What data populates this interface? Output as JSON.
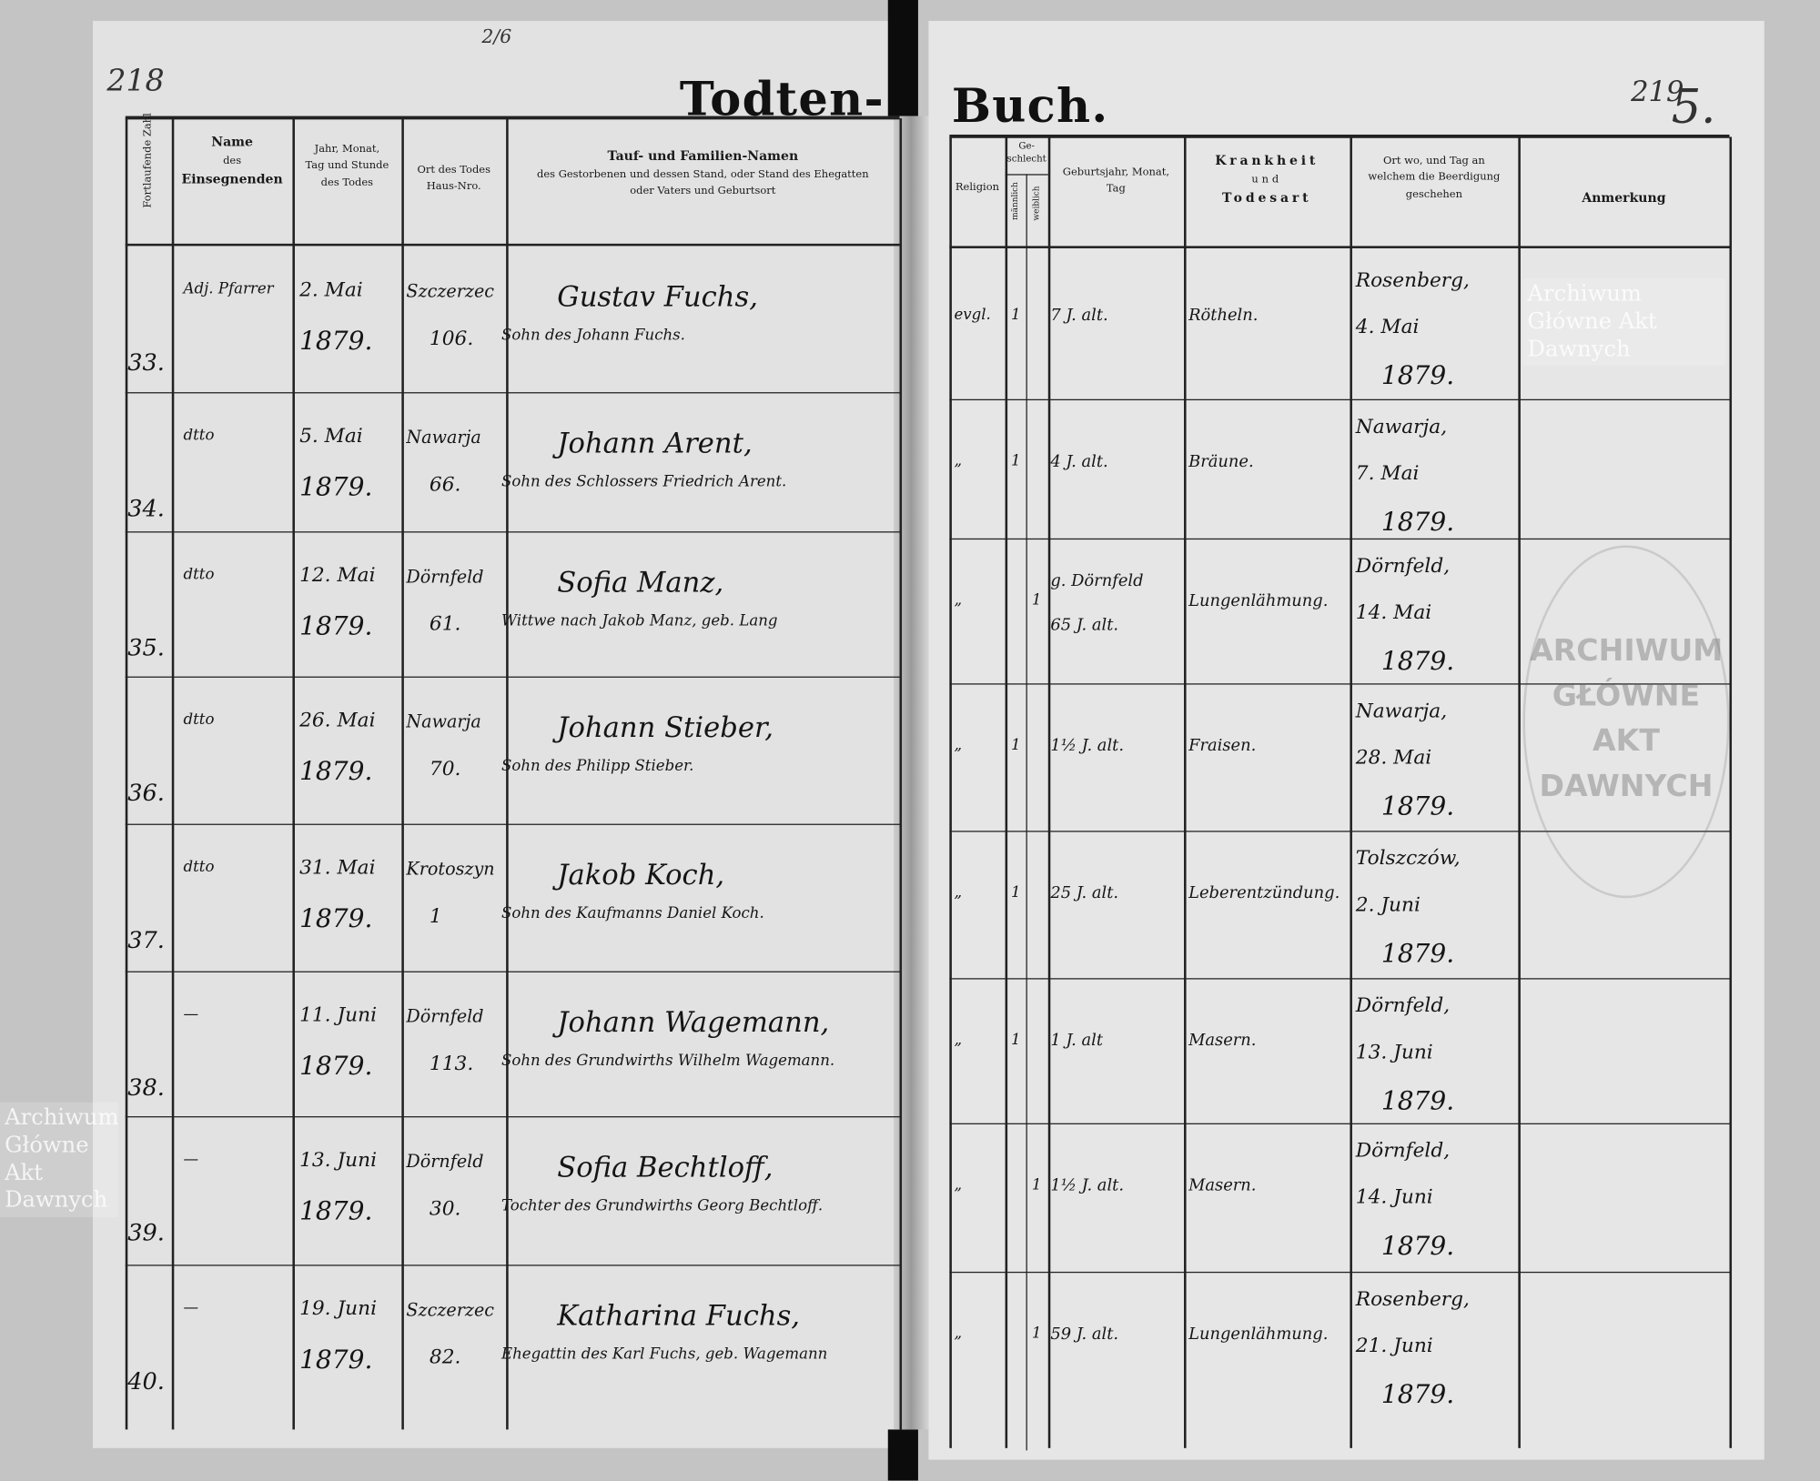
{
  "margin_notes": {
    "left_folio": "218",
    "center_note": "2/6",
    "right_folio": "219",
    "page_number": "5."
  },
  "title": {
    "left": "Todten-",
    "right": "Buch."
  },
  "headers": {
    "number": "Fortlaufende Zahl",
    "name": [
      "Name",
      "des",
      "Einsegnenden"
    ],
    "date": [
      "Jahr, Monat,",
      "Tag und Stunde",
      "des Todes"
    ],
    "place": [
      "Ort des Todes",
      "Haus-Nro."
    ],
    "family": [
      "Tauf- und Familien-Namen",
      "des Gestorbenen und dessen Stand, oder Stand des Ehegatten",
      "oder Vaters und Geburtsort"
    ],
    "religion": "Religion",
    "sex": [
      "Ge-",
      "schlecht"
    ],
    "male": "männlich",
    "female": "weiblich",
    "birth": [
      "Geburtsjahr, Monat,",
      "Tag"
    ],
    "illness": [
      "Krankheit",
      "und",
      "Todesart"
    ],
    "burial": [
      "Ort wo, und Tag an",
      "welchem die Beerdigung",
      "geschehen"
    ],
    "remarks": "Anmerkung"
  },
  "rows": [
    {
      "num": "33.",
      "officiant": "Adj. Pfarrer",
      "date": [
        "2. Mai",
        "1879."
      ],
      "place": [
        "Szczerzec",
        "106."
      ],
      "name": "Gustav Fuchs,",
      "desc": "Sohn des Johann Fuchs.",
      "religion": "evgl.",
      "male": "1",
      "female": "",
      "age": [
        "7 J. alt."
      ],
      "illness": "Rötheln.",
      "burial": [
        "Rosenberg,",
        "4. Mai",
        "1879."
      ]
    },
    {
      "num": "34.",
      "officiant": "dtto",
      "date": [
        "5. Mai",
        "1879."
      ],
      "place": [
        "Nawarja",
        "66."
      ],
      "name": "Johann Arent,",
      "desc": "Sohn des Schlossers Friedrich Arent.",
      "religion": "„",
      "male": "1",
      "female": "",
      "age": [
        "4 J. alt."
      ],
      "illness": "Bräune.",
      "burial": [
        "Nawarja,",
        "7. Mai",
        "1879."
      ]
    },
    {
      "num": "35.",
      "officiant": "dtto",
      "date": [
        "12. Mai",
        "1879."
      ],
      "place": [
        "Dörnfeld",
        "61."
      ],
      "name": "Sofia Manz,",
      "desc": "Wittwe nach Jakob Manz, geb. Lang",
      "religion": "„",
      "male": "",
      "female": "1",
      "age": [
        "g. Dörnfeld",
        "65 J. alt."
      ],
      "illness": "Lungenlähmung.",
      "burial": [
        "Dörnfeld,",
        "14. Mai",
        "1879."
      ]
    },
    {
      "num": "36.",
      "officiant": "dtto",
      "date": [
        "26. Mai",
        "1879."
      ],
      "place": [
        "Nawarja",
        "70."
      ],
      "name": "Johann Stieber,",
      "desc": "Sohn des Philipp Stieber.",
      "religion": "„",
      "male": "1",
      "female": "",
      "age": [
        "1½ J. alt."
      ],
      "illness": "Fraisen.",
      "burial": [
        "Nawarja,",
        "28. Mai",
        "1879."
      ]
    },
    {
      "num": "37.",
      "officiant": "dtto",
      "date": [
        "31. Mai",
        "1879."
      ],
      "place": [
        "Krotoszyn",
        "1"
      ],
      "name": "Jakob Koch,",
      "desc": "Sohn des Kaufmanns Daniel Koch.",
      "religion": "„",
      "male": "1",
      "female": "",
      "age": [
        "25 J. alt."
      ],
      "illness": "Leberentzündung.",
      "burial": [
        "Tolszczów,",
        "2. Juni",
        "1879."
      ]
    },
    {
      "num": "38.",
      "officiant": "—",
      "date": [
        "11. Juni",
        "1879."
      ],
      "place": [
        "Dörnfeld",
        "113."
      ],
      "name": "Johann Wagemann,",
      "desc": "Sohn des Grundwirths Wilhelm Wagemann.",
      "religion": "„",
      "male": "1",
      "female": "",
      "age": [
        "1 J. alt"
      ],
      "illness": "Masern.",
      "burial": [
        "Dörnfeld,",
        "13. Juni",
        "1879."
      ]
    },
    {
      "num": "39.",
      "officiant": "—",
      "date": [
        "13. Juni",
        "1879."
      ],
      "place": [
        "Dörnfeld",
        "30."
      ],
      "name": "Sofia Bechtloff,",
      "desc": "Tochter des Grundwirths Georg Bechtloff.",
      "religion": "„",
      "male": "",
      "female": "1",
      "age": [
        "1½ J. alt."
      ],
      "illness": "Masern.",
      "burial": [
        "Dörnfeld,",
        "14. Juni",
        "1879."
      ]
    },
    {
      "num": "40.",
      "officiant": "—",
      "date": [
        "19. Juni",
        "1879."
      ],
      "place": [
        "Szczerzec",
        "82."
      ],
      "name": "Katharina Fuchs,",
      "desc": "Ehegattin des Karl Fuchs, geb. Wagemann",
      "religion": "„",
      "male": "",
      "female": "1",
      "age": [
        "59 J. alt."
      ],
      "illness": "Lungenlähmung.",
      "burial": [
        "Rosenberg,",
        "21. Juni",
        "1879."
      ]
    }
  ],
  "watermarks": [
    "Archiwum Główne Akt Dawnych",
    "Archiwum Główne Akt Dawnych"
  ],
  "stamp_text": "ARCHIWUM GŁÓWNE AKT DAWNYCH"
}
